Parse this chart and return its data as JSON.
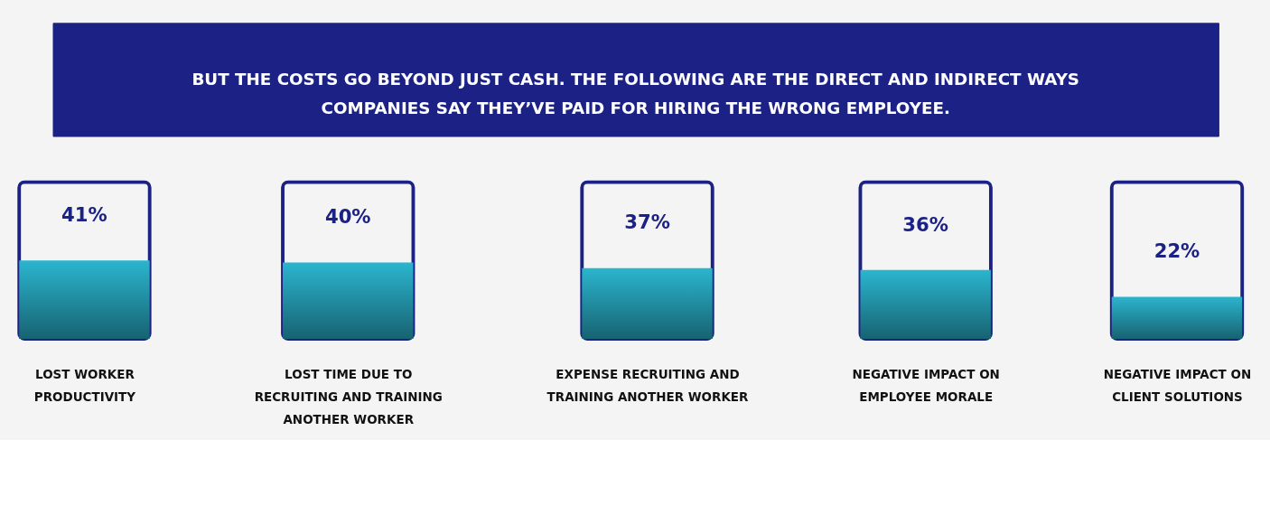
{
  "chart_data": {
    "type": "bar",
    "title": "BUT THE COSTS GO BEYOND JUST CASH. THE FOLLOWING ARE THE DIRECT AND INDIRECT WAYS COMPANIES SAY THEY’VE PAID FOR HIRING THE WRONG EMPLOYEE.",
    "categories": [
      "LOST WORKER PRODUCTIVITY",
      "LOST TIME DUE TO RECRUITING AND TRAINING ANOTHER WORKER",
      "EXPENSE RECRUITING AND TRAINING ANOTHER WORKER",
      "NEGATIVE IMPACT ON EMPLOYEE MORALE",
      "NEGATIVE IMPACT ON CLIENT SOLUTIONS"
    ],
    "values": [
      41,
      40,
      37,
      36,
      22
    ],
    "color": "#2bb5cf",
    "value_labels": [
      "41%",
      "40%",
      "37%",
      "36%",
      "22%"
    ],
    "tick_labels": false
  }
}
